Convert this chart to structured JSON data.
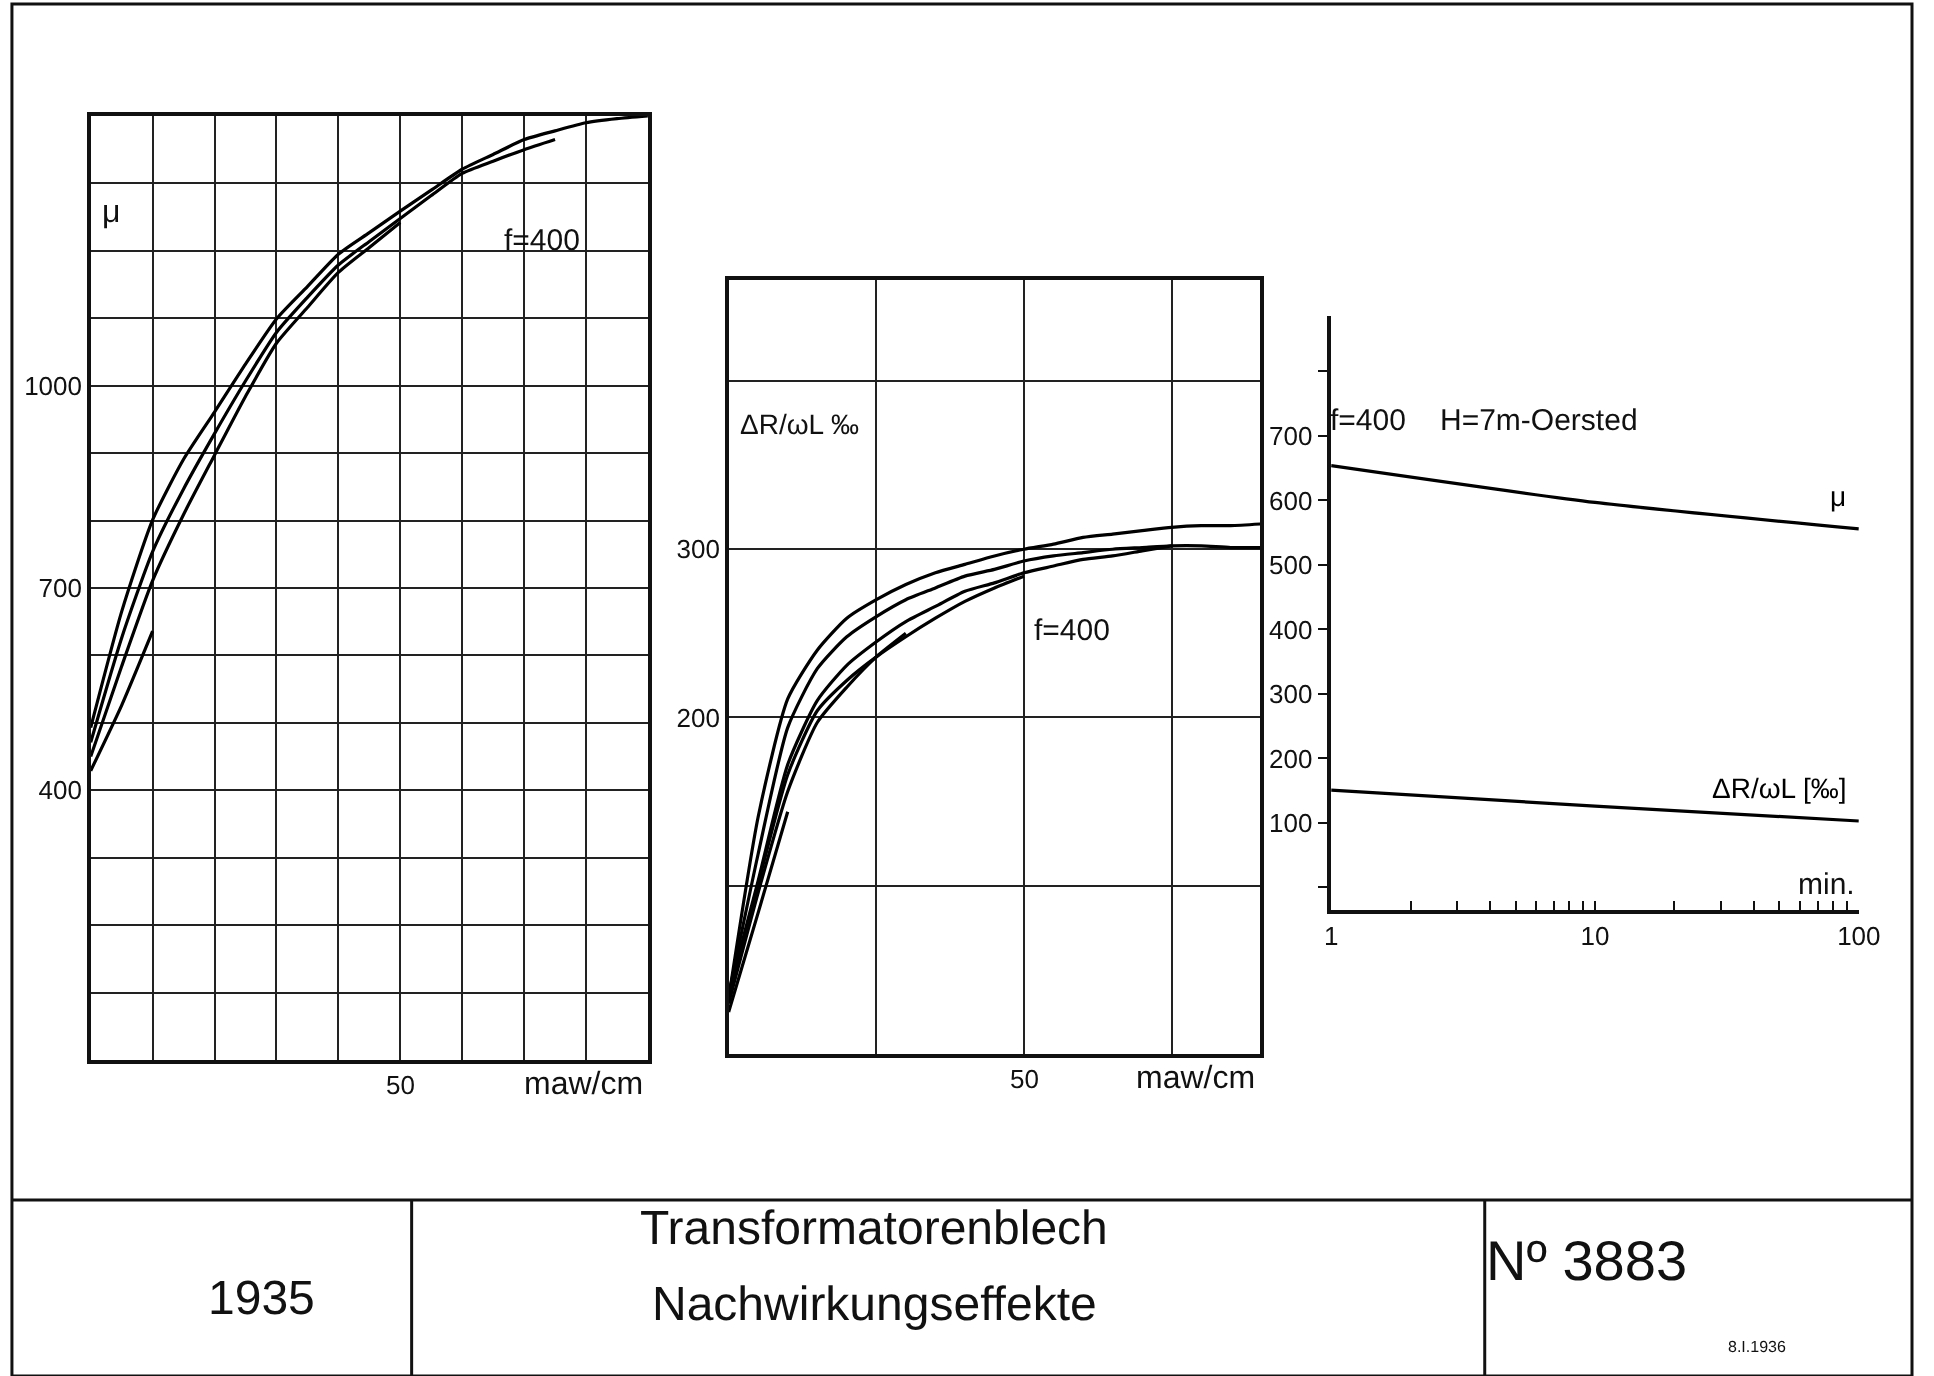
{
  "chart_data": [
    {
      "type": "line",
      "ylabel": "μ",
      "xlabel": "maw/cm",
      "annotations": [
        "f=400",
        "50"
      ],
      "ylim": [
        0,
        1400
      ],
      "categories": [
        null,
        null,
        null,
        null,
        null,
        null,
        null,
        null,
        null,
        null,
        null,
        null,
        null,
        null,
        null,
        null,
        null,
        null,
        null
      ],
      "yticks": [
        {
          "value": 100,
          "label": null
        },
        {
          "value": 200,
          "label": null
        },
        {
          "value": 300,
          "label": null
        },
        400,
        {
          "value": 500,
          "label": null
        },
        {
          "value": 600,
          "label": null
        },
        700,
        {
          "value": 800,
          "label": null
        },
        {
          "value": 900,
          "label": null
        },
        1000,
        {
          "value": 1100,
          "label": null
        },
        {
          "value": 1200,
          "label": null
        },
        {
          "value": 1300,
          "label": null
        },
        {
          "value": 1400,
          "label": null
        }
      ],
      "grid": true,
      "legend": false,
      "marker": "none",
      "line_style": "solid",
      "series": [
        {
          "color": "#000000",
          "values": [
            493,
            665,
            801,
            891,
            961,
            1032,
            1099,
            1147,
            1195,
            1227,
            1259,
            1290,
            1321,
            1343,
            1365,
            1378,
            1390,
            1396,
            1400
          ]
        },
        {
          "color": "#000000",
          "values": [
            471,
            626,
            754,
            847,
            929,
            1007,
            1079,
            1131,
            1179,
            1214,
            1248,
            1282,
            1315,
            1333,
            1350,
            1365,
            null,
            null,
            null
          ]
        },
        {
          "color": "#000000",
          "values": [
            450,
            584,
            711,
            809,
            897,
            984,
            1063,
            1116,
            1168,
            1205,
            1242,
            null,
            null,
            null,
            null,
            null,
            null,
            null,
            null
          ]
        },
        {
          "color": "#000000",
          "values": [
            429,
            526,
            636,
            null,
            null,
            null,
            null,
            null,
            null,
            null,
            null,
            null,
            null,
            null,
            null,
            null,
            null,
            null,
            null
          ]
        }
      ]
    },
    {
      "type": "line",
      "ylabel": "ΔR/ωL ‰",
      "xlabel": "maw/cm",
      "annotations": [
        "f=400",
        "50"
      ],
      "ylim": [
        0,
        460
      ],
      "categories": [
        null,
        null,
        null,
        null,
        null,
        null,
        null,
        null,
        null,
        null,
        null,
        null,
        null,
        null,
        null,
        null,
        null,
        null,
        null
      ],
      "yticks": [
        {
          "value": 100,
          "label": null
        },
        200,
        300,
        {
          "value": 400,
          "label": null
        }
      ],
      "grid": true,
      "legend": false,
      "marker": "none",
      "line_style": "solid",
      "series": [
        {
          "color": "#000000",
          "values": [
            33,
            141,
            211,
            240,
            259,
            270,
            279,
            286,
            291,
            296,
            300,
            303,
            307,
            309,
            311,
            313,
            314,
            314,
            315
          ]
        },
        {
          "color": "#000000",
          "values": [
            35,
            119,
            194,
            229,
            248,
            260,
            270,
            277,
            284,
            288,
            293,
            296,
            298,
            300,
            301,
            302,
            302,
            301,
            301
          ]
        },
        {
          "color": "#000000",
          "values": [
            36,
            103,
            172,
            210,
            231,
            245,
            257,
            266,
            275,
            280,
            286,
            290,
            294,
            296,
            299,
            302,
            null,
            null,
            null
          ]
        },
        {
          "color": "#000000",
          "values": [
            32,
            101,
            166,
            204,
            222,
            236,
            248,
            259,
            269,
            277,
            284,
            null,
            null,
            null,
            null,
            null,
            null,
            null,
            null
          ]
        },
        {
          "color": "#000000",
          "values": [
            30,
            96,
            156,
            197,
            218,
            236,
            250,
            null,
            null,
            null,
            null,
            null,
            null,
            null,
            null,
            null,
            null,
            null,
            null
          ]
        },
        {
          "color": "#000000",
          "values": [
            25,
            84,
            144,
            null,
            null,
            null,
            null,
            null,
            null,
            null,
            null,
            null,
            null,
            null,
            null,
            null,
            null,
            null,
            null
          ]
        }
      ]
    },
    {
      "type": "line",
      "xlabel": "min.",
      "annotations": [
        "f=400",
        "H=7m-Oersted"
      ],
      "log": "x",
      "xlim": [
        1,
        100
      ],
      "ylim": [
        -35,
        886
      ],
      "xticks": [
        1,
        {
          "value": 2,
          "label": null
        },
        {
          "value": 3,
          "label": null
        },
        {
          "value": 4,
          "label": null
        },
        {
          "value": 5,
          "label": null
        },
        {
          "value": 6,
          "label": null
        },
        {
          "value": 7,
          "label": null
        },
        {
          "value": 8,
          "label": null
        },
        {
          "value": 9,
          "label": null
        },
        10,
        {
          "value": 20,
          "label": null
        },
        {
          "value": 30,
          "label": null
        },
        {
          "value": 40,
          "label": null
        },
        {
          "value": 50,
          "label": null
        },
        {
          "value": 60,
          "label": null
        },
        {
          "value": 70,
          "label": null
        },
        {
          "value": 80,
          "label": null
        },
        {
          "value": 90,
          "label": null
        },
        100
      ],
      "yticks": [
        {
          "value": 0,
          "label": null
        },
        100,
        200,
        300,
        400,
        500,
        600,
        700,
        {
          "value": 800,
          "label": null
        }
      ],
      "grid": false,
      "legend": false,
      "marker": "none",
      "line_style": "solid",
      "series": [
        {
          "name": "μ",
          "color": "#000000",
          "x": [
            1,
            10,
            100
          ],
          "values": [
            654,
            597,
            556
          ]
        },
        {
          "name": "ΔR/ωL [‰]",
          "color": "#000000",
          "x": [
            1,
            10,
            100
          ],
          "values": [
            151,
            126,
            103
          ]
        }
      ]
    },
    {
      "type": "other",
      "title": "Transformatorenblech",
      "subtitle": "Nachwirkungseffekte",
      "annotations": [
        "1935",
        "Nº 3883",
        "8.I.1936"
      ]
    }
  ]
}
